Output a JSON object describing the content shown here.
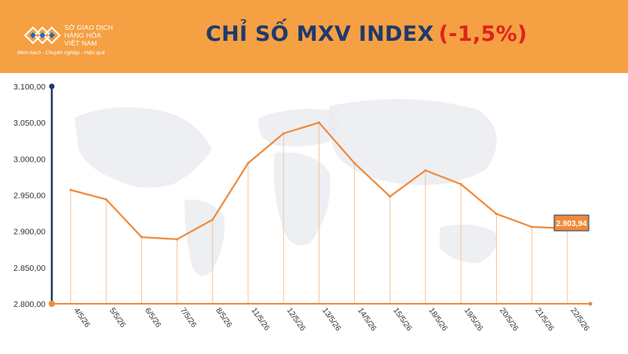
{
  "header": {
    "logo_lines": [
      "SỞ GIAO DỊCH",
      "HÀNG HÓA",
      "VIỆT NAM"
    ],
    "logo_tagline": "Minh bạch - Chuyên nghiệp - Hiệu quả",
    "title_main": "CHỈ SỐ MXV INDEX",
    "title_change": "(-1,5%)"
  },
  "colors": {
    "header_bg": "#f5a043",
    "title_main": "#1f3a6b",
    "title_change": "#e0231d",
    "line": "#ef8a3c",
    "axis": "#1f3a6b",
    "callout_bg": "#ef8a3c",
    "callout_border": "#1f3a6b"
  },
  "chart_data": {
    "type": "line",
    "categories": [
      "4/5/26",
      "5/5/26",
      "6/5/26",
      "7/5/26",
      "8/5/26",
      "11/5/26",
      "12/5/26",
      "13/5/26",
      "14/5/26",
      "15/5/26",
      "18/5/26",
      "19/5/26",
      "20/5/26",
      "21/5/26",
      "22/5/26"
    ],
    "series": [
      {
        "values": [
          2957,
          2944,
          2892,
          2889,
          2916,
          2994,
          3035,
          3050,
          2994,
          2948,
          2984,
          2965,
          2924,
          2906,
          2903.94
        ]
      }
    ],
    "ylim": [
      2800,
      3100
    ],
    "yticks": [
      "2.800,00",
      "2.850,00",
      "2.900,00",
      "2.950,00",
      "3.000,00",
      "3.050,00",
      "3.100,00"
    ],
    "last_value_label": "2.903,94",
    "grid": false,
    "drop_lines": true
  }
}
